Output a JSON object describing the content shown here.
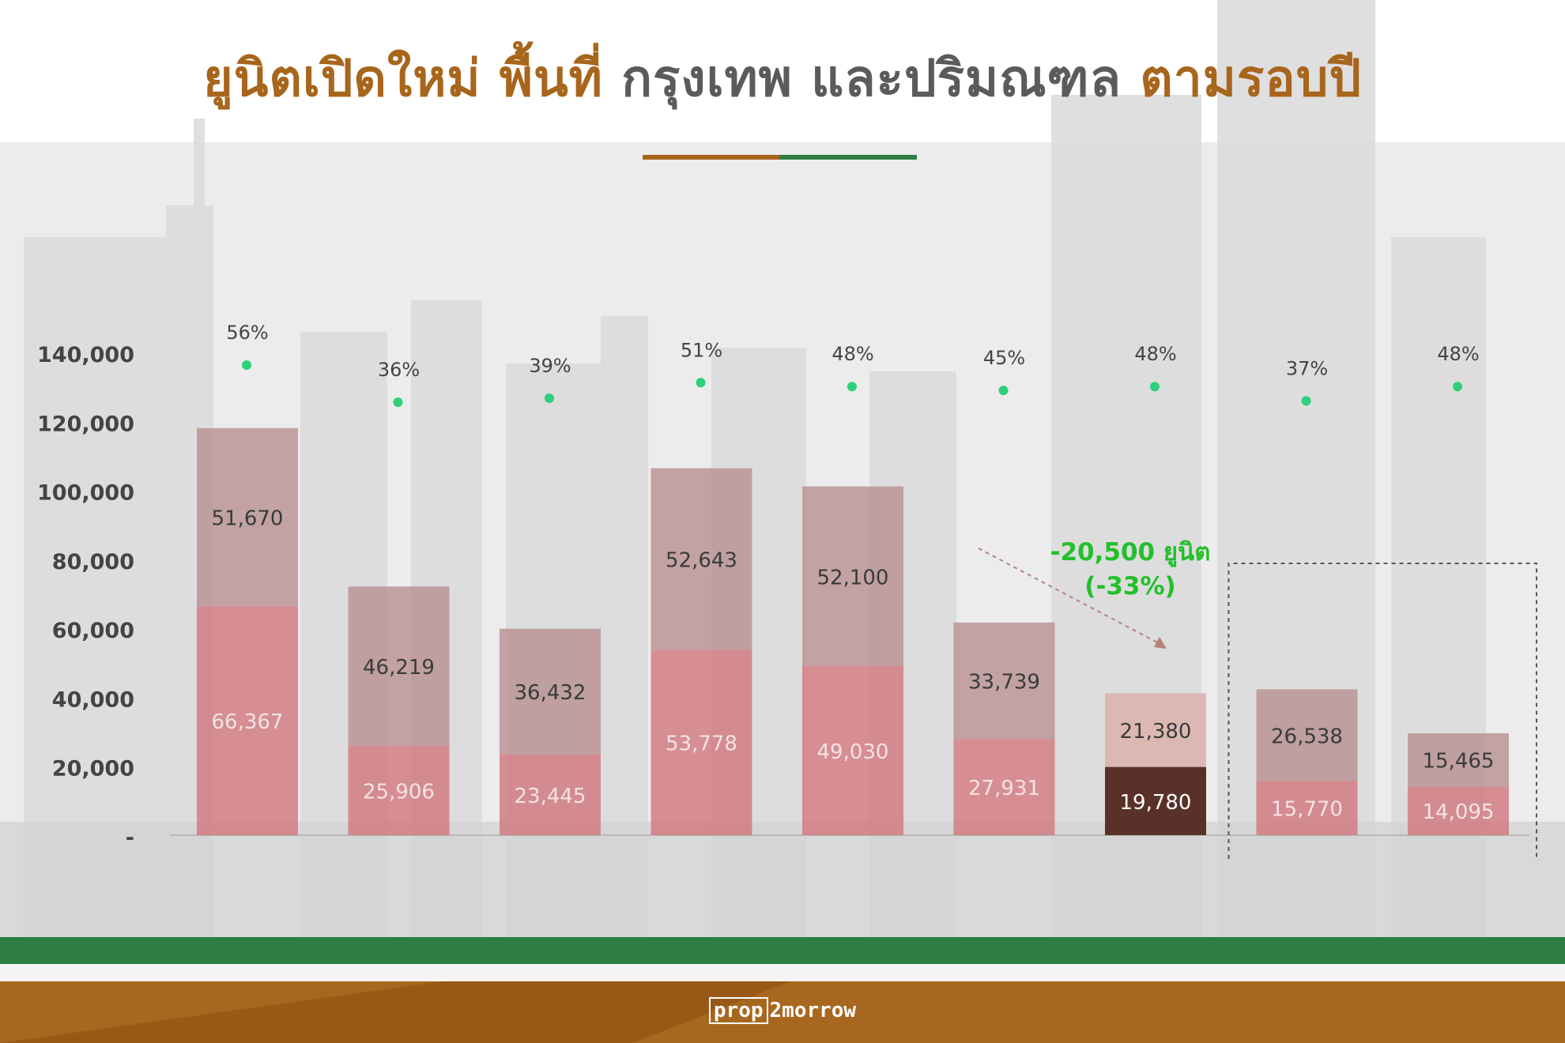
{
  "title": {
    "part1": "ยูนิตเปิดใหม่ พื้นที่",
    "part2": "กรุงเทพ และปริมณฑล",
    "part3": "ตามรอบปี"
  },
  "colors": {
    "title_accent": "#a8651c",
    "title_gray": "#5b5b5b",
    "bar_top": "#b48a8a",
    "bar_bottom": "#d0737a",
    "bar_highlight": "#5a3128",
    "percent_dot": "#2fd07a",
    "annotation": "#22c02a",
    "footer_green": "#2e7d43",
    "footer_brown": "#a8671e"
  },
  "chart_data": {
    "type": "bar",
    "stacked": true,
    "y_ticks": [
      "140,000",
      "120,000",
      "100,000",
      "80,000",
      "60,000",
      "40,000",
      "20,000",
      "-"
    ],
    "ylim": [
      0,
      140000
    ],
    "categories": [
      "",
      "",
      "",
      "",
      "",
      "",
      "",
      "",
      ""
    ],
    "series": [
      {
        "values": [
          66367,
          25906,
          23445,
          53778,
          49030,
          27931,
          19780,
          15770,
          14095
        ]
      },
      {
        "values": [
          51670,
          46219,
          36432,
          52643,
          52100,
          33739,
          21380,
          26538,
          15465
        ]
      }
    ],
    "bottom_labels": [
      "66,367",
      "25,906",
      "23,445",
      "53,778",
      "49,030",
      "27,931",
      "19,780",
      "15,770",
      "14,095"
    ],
    "top_labels": [
      "51,670",
      "46,219",
      "36,432",
      "52,643",
      "52,100",
      "33,739",
      "21,380",
      "26,538",
      "15,465"
    ],
    "percentages": [
      "56%",
      "36%",
      "39%",
      "51%",
      "48%",
      "45%",
      "48%",
      "37%",
      "48%"
    ],
    "percent_values": [
      56,
      36,
      39,
      51,
      48,
      45,
      48,
      37,
      48
    ],
    "highlight_index": 6,
    "dashed_box_group": [
      7,
      8
    ],
    "annotation": {
      "line1": "-20,500 ยูนิต",
      "line2": "(-33%)"
    }
  },
  "footer": {
    "logo_left": "prop",
    "logo_right": "2morrow"
  }
}
